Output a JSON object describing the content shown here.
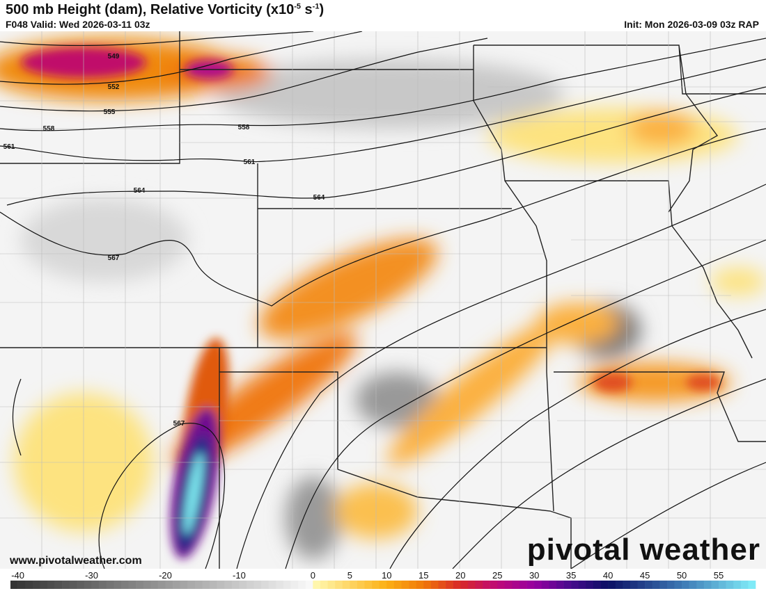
{
  "header": {
    "title": "500 mb Height (dam), Relative Vorticity (x10",
    "title_exp1": "-5",
    "title_mid": " s",
    "title_exp2": "-1",
    "title_end": ")",
    "valid": "F048 Valid: Wed 2026-03-11 03z",
    "init": "Init: Mon 2026-03-09 03z RAP"
  },
  "footer": {
    "url": "www.pivotalweather.com",
    "logo": "pivotal weather"
  },
  "contour_labels": [
    "549",
    "552",
    "555",
    "558",
    "558",
    "561",
    "561",
    "564",
    "564",
    "567",
    "567"
  ],
  "colorbar": {
    "ticks": [
      "-40",
      "-30",
      "-20",
      "-10",
      "0",
      "5",
      "10",
      "15",
      "20",
      "25",
      "30",
      "35",
      "40",
      "45",
      "50",
      "55"
    ],
    "range": [
      -41,
      60
    ]
  }
}
